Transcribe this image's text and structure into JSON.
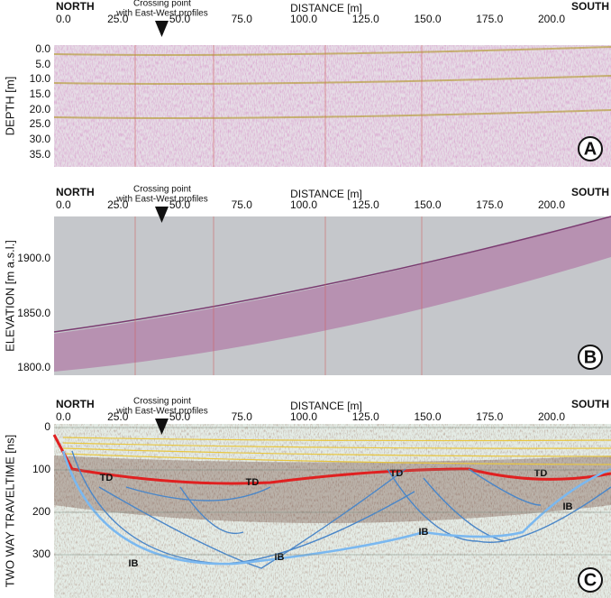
{
  "panels": [
    {
      "letter": "A",
      "north": "NORTH",
      "south": "SOUTH",
      "distance_label": "DISTANCE [m]",
      "crossing": [
        "Crossing point",
        "with East-West profiles"
      ],
      "x_tick_labels": [
        "0.0",
        "25.0",
        "50.0",
        "75.0",
        "100.0",
        "125.0",
        "150.0",
        "175.0",
        "200.0"
      ],
      "y_label": "DEPTH [m]",
      "y_tick_labels": [
        "0.0",
        "5.0",
        "10.0",
        "15.0",
        "20.0",
        "25.0",
        "30.0",
        "35.0"
      ]
    },
    {
      "letter": "B",
      "north": "NORTH",
      "south": "SOUTH",
      "distance_label": "DISTANCE [m]",
      "crossing": [
        "Crossing point",
        "with East-West profiles"
      ],
      "x_tick_labels": [
        "0.0",
        "25.0",
        "50.0",
        "75.0",
        "100.0",
        "125.0",
        "150.0",
        "175.0",
        "200.0"
      ],
      "y_label": "ELEVATION [m a.s.l.]",
      "y_tick_labels": [
        "1900.0",
        "1850.0",
        "1800.0"
      ]
    },
    {
      "letter": "C",
      "north": "NORTH",
      "south": "SOUTH",
      "distance_label": "DISTANCE [m]",
      "crossing": [
        "Crossing point",
        "with East-West profiles"
      ],
      "x_tick_labels": [
        "0.0",
        "25.0",
        "50.0",
        "75.0",
        "100.0",
        "125.0",
        "150.0",
        "175.0",
        "200.0"
      ],
      "y_label": "TWO WAY TRAVELTIME [ns]",
      "y_tick_labels": [
        "0",
        "100",
        "200",
        "300"
      ],
      "annotations": [
        "TD",
        "TD",
        "TD",
        "TD",
        "IB",
        "IB",
        "IB",
        "IB"
      ]
    }
  ]
}
